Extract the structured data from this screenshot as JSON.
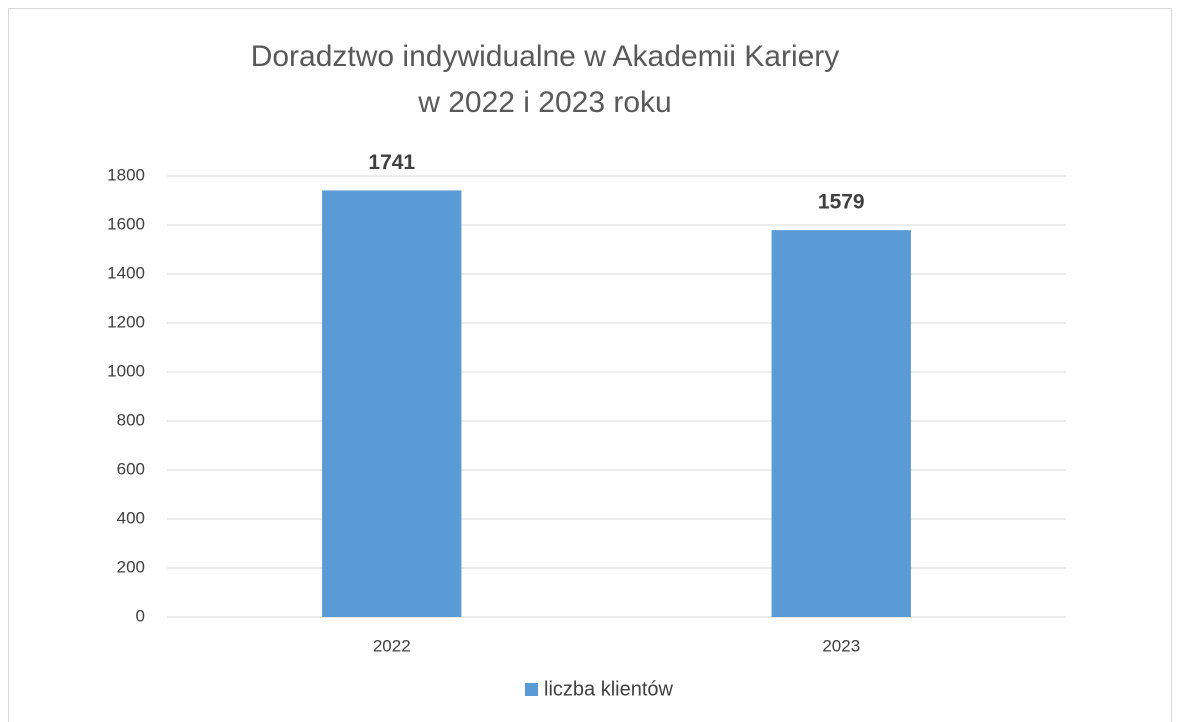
{
  "chart_data": {
    "type": "bar",
    "title": [
      "Doradztwo indywidualne w Akademii Kariery",
      "w 2022 i 2023 roku"
    ],
    "categories": [
      "2022",
      "2023"
    ],
    "series": [
      {
        "name": "liczba klientów",
        "color": "#5b9bd5",
        "values": [
          1741,
          1579
        ]
      }
    ],
    "ylim": [
      0,
      1800
    ],
    "yticks": [
      0,
      200,
      400,
      600,
      800,
      1000,
      1200,
      1400,
      1600,
      1800
    ],
    "grid": true,
    "legend": "bottom",
    "data_labels": true
  }
}
